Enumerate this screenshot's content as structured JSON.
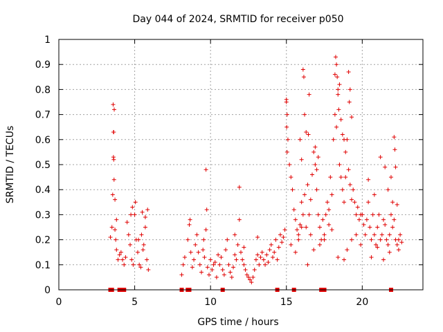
{
  "chart_data": {
    "type": "scatter",
    "title": "Day 044 of 2024, SRMTID for receiver p050",
    "xlabel": "GPS time / hours",
    "ylabel": "SRMTID / TECUs",
    "xlim": [
      0,
      24
    ],
    "ylim": [
      0,
      1
    ],
    "x_ticks": [
      0,
      5,
      10,
      15,
      20
    ],
    "x_tick_labels": [
      "0",
      "5",
      "10",
      "15",
      "20"
    ],
    "y_ticks": [
      0,
      0.1,
      0.2,
      0.3,
      0.4,
      0.5,
      0.6,
      0.7,
      0.8,
      0.9,
      1
    ],
    "y_tick_labels": [
      "0",
      "0.1",
      "0.2",
      "0.3",
      "0.4",
      "0.5",
      "0.6",
      "0.7",
      "0.8",
      "0.9",
      "1"
    ],
    "grid": true,
    "marker": "+",
    "color": "#e00000",
    "series": [
      {
        "name": "SRMTID",
        "x": [
          3.4,
          3.5,
          3.55,
          3.6,
          3.62,
          3.65,
          3.7,
          3.75,
          3.8,
          3.9,
          4.0,
          4.1,
          4.2,
          4.3,
          4.4,
          4.5,
          4.6,
          4.7,
          4.8,
          4.9,
          5.0,
          5.1,
          5.2,
          5.3,
          5.4,
          5.5,
          5.6,
          5.7,
          5.8,
          5.9,
          3.58,
          3.6,
          3.62,
          3.64,
          3.7,
          3.8,
          4.75,
          4.85,
          5.05,
          5.25,
          5.45,
          5.55,
          5.7,
          5.85,
          8.1,
          8.2,
          8.3,
          8.5,
          8.6,
          8.7,
          8.8,
          8.9,
          9.0,
          9.1,
          9.2,
          9.3,
          9.4,
          9.5,
          9.6,
          9.7,
          9.8,
          9.9,
          10.0,
          10.1,
          10.2,
          10.3,
          10.4,
          10.5,
          10.6,
          10.7,
          10.8,
          10.9,
          11.0,
          11.1,
          11.2,
          11.3,
          11.4,
          11.5,
          11.6,
          11.7,
          11.8,
          11.9,
          12.0,
          12.1,
          12.2,
          12.3,
          12.4,
          12.5,
          12.6,
          12.7,
          12.8,
          12.9,
          13.0,
          13.1,
          13.2,
          13.3,
          13.4,
          13.5,
          13.6,
          13.7,
          13.8,
          13.9,
          14.0,
          14.1,
          14.2,
          14.3,
          14.4,
          14.5,
          14.6,
          14.7,
          14.8,
          14.9,
          9.7,
          9.75,
          11.9,
          8.65,
          9.55,
          11.6,
          12.2,
          13.1,
          15.0,
          15.05,
          15.1,
          15.2,
          15.3,
          15.4,
          15.5,
          15.6,
          15.7,
          15.8,
          15.9,
          16.0,
          16.1,
          16.2,
          16.3,
          16.4,
          16.5,
          16.6,
          16.7,
          16.8,
          16.9,
          17.0,
          17.1,
          17.2,
          17.3,
          17.4,
          17.5,
          17.6,
          17.7,
          17.8,
          17.9,
          18.0,
          18.1,
          18.2,
          18.3,
          18.4,
          18.5,
          18.6,
          18.7,
          18.8,
          18.9,
          19.0,
          19.1,
          19.2,
          19.3,
          19.4,
          19.5,
          19.6,
          19.7,
          19.8,
          19.9,
          15.0,
          15.02,
          15.05,
          16.1,
          16.15,
          16.2,
          16.3,
          15.9,
          16.0,
          16.45,
          16.5,
          16.9,
          17.1,
          17.0,
          18.2,
          18.25,
          18.3,
          18.4,
          18.45,
          18.5,
          18.6,
          18.7,
          18.8,
          19.1,
          19.2,
          19.15,
          19.3,
          18.9,
          18.35,
          15.3,
          15.6,
          15.8,
          16.0,
          16.4,
          16.6,
          16.8,
          17.2,
          17.5,
          17.8,
          18.0,
          18.4,
          18.8,
          19.0,
          19.3,
          19.6,
          19.9,
          20.0,
          20.1,
          20.2,
          20.3,
          20.4,
          20.5,
          20.6,
          20.7,
          20.8,
          20.9,
          21.0,
          21.1,
          21.2,
          21.3,
          21.4,
          21.5,
          21.6,
          21.7,
          21.8,
          21.9,
          22.0,
          22.1,
          22.2,
          22.3,
          22.4,
          22.5,
          22.6,
          20.4,
          20.8,
          21.2,
          21.5,
          21.7,
          21.9,
          22.1,
          22.15,
          22.2,
          22.3,
          20.6,
          21.0,
          21.4,
          21.8,
          22.0,
          22.4
        ],
        "y": [
          0.21,
          0.25,
          0.38,
          0.53,
          0.63,
          0.72,
          0.24,
          0.2,
          0.16,
          0.12,
          0.14,
          0.15,
          0.12,
          0.1,
          0.13,
          0.27,
          0.22,
          0.18,
          0.12,
          0.1,
          0.3,
          0.2,
          0.15,
          0.1,
          0.09,
          0.31,
          0.18,
          0.25,
          0.12,
          0.08,
          0.74,
          0.63,
          0.52,
          0.44,
          0.36,
          0.28,
          0.3,
          0.33,
          0.35,
          0.2,
          0.22,
          0.16,
          0.29,
          0.32,
          0.06,
          0.1,
          0.13,
          0.2,
          0.26,
          0.15,
          0.09,
          0.12,
          0.18,
          0.22,
          0.15,
          0.1,
          0.07,
          0.16,
          0.13,
          0.24,
          0.09,
          0.06,
          0.12,
          0.08,
          0.1,
          0.11,
          0.05,
          0.14,
          0.1,
          0.13,
          0.08,
          0.06,
          0.16,
          0.2,
          0.1,
          0.07,
          0.05,
          0.09,
          0.14,
          0.12,
          0.18,
          0.28,
          0.15,
          0.12,
          0.1,
          0.08,
          0.06,
          0.05,
          0.04,
          0.03,
          0.05,
          0.08,
          0.12,
          0.14,
          0.1,
          0.13,
          0.15,
          0.12,
          0.1,
          0.14,
          0.11,
          0.16,
          0.18,
          0.13,
          0.15,
          0.2,
          0.12,
          0.17,
          0.22,
          0.19,
          0.21,
          0.24,
          0.48,
          0.32,
          0.41,
          0.28,
          0.2,
          0.22,
          0.17,
          0.21,
          0.75,
          0.7,
          0.6,
          0.5,
          0.45,
          0.4,
          0.32,
          0.28,
          0.24,
          0.22,
          0.26,
          0.35,
          0.3,
          0.38,
          0.25,
          0.42,
          0.3,
          0.36,
          0.46,
          0.55,
          0.5,
          0.4,
          0.3,
          0.25,
          0.2,
          0.28,
          0.22,
          0.3,
          0.35,
          0.32,
          0.45,
          0.38,
          0.6,
          0.7,
          0.65,
          0.78,
          0.5,
          0.45,
          0.4,
          0.35,
          0.55,
          0.6,
          0.48,
          0.42,
          0.36,
          0.4,
          0.35,
          0.3,
          0.33,
          0.28,
          0.3,
          0.76,
          0.65,
          0.55,
          0.88,
          0.85,
          0.7,
          0.63,
          0.6,
          0.52,
          0.62,
          0.78,
          0.57,
          0.53,
          0.48,
          0.86,
          0.93,
          0.9,
          0.8,
          0.72,
          0.82,
          0.68,
          0.62,
          0.6,
          0.87,
          0.8,
          0.75,
          0.69,
          0.45,
          0.85,
          0.18,
          0.15,
          0.2,
          0.25,
          0.1,
          0.22,
          0.16,
          0.18,
          0.2,
          0.26,
          0.24,
          0.13,
          0.12,
          0.16,
          0.2,
          0.22,
          0.18,
          0.3,
          0.26,
          0.22,
          0.28,
          0.35,
          0.25,
          0.2,
          0.3,
          0.22,
          0.18,
          0.25,
          0.3,
          0.2,
          0.22,
          0.28,
          0.26,
          0.2,
          0.18,
          0.22,
          0.3,
          0.35,
          0.28,
          0.2,
          0.18,
          0.2,
          0.22,
          0.19,
          0.44,
          0.38,
          0.53,
          0.49,
          0.4,
          0.45,
          0.61,
          0.56,
          0.49,
          0.34,
          0.13,
          0.17,
          0.12,
          0.15,
          0.25,
          0.16
        ],
        "flag_x": [
          3.4,
          3.5,
          4.0,
          4.2,
          4.3,
          8.1,
          8.5,
          8.6,
          10.8,
          14.4,
          15.5,
          17.3,
          17.5,
          21.9
        ]
      }
    ]
  }
}
